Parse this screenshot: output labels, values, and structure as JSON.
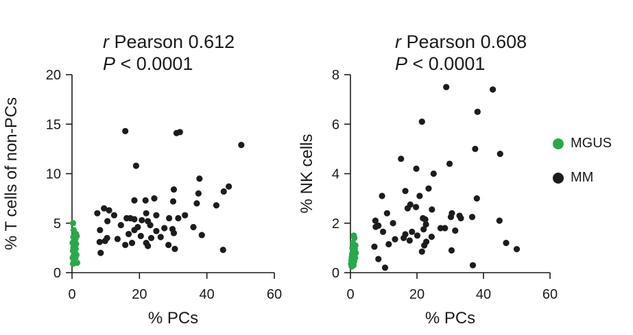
{
  "colors": {
    "MGUS": "#2aa84a",
    "MM": "#1c1c1c",
    "axis": "#1a1a1a"
  },
  "legend": {
    "placement": "right",
    "items": [
      {
        "label": "MGUS",
        "color": "#2aa84a"
      },
      {
        "label": "MM",
        "color": "#1c1c1c"
      }
    ]
  },
  "chart_data": [
    {
      "type": "scatter",
      "title_line1_italic": "r",
      "title_line1_rest": " Pearson 0.612",
      "title_line2_italic": "P",
      "title_line2_rest": " < 0.0001",
      "xlabel": "% PCs",
      "ylabel": "% T cells of non-PCs",
      "xlim": [
        0,
        60
      ],
      "ylim": [
        0,
        20
      ],
      "xticks": [
        0,
        20,
        40,
        60
      ],
      "yticks": [
        0,
        5,
        10,
        15,
        20
      ],
      "grid": false,
      "series": [
        {
          "name": "MGUS",
          "points": [
            [
              0.3,
              5.0
            ],
            [
              0.5,
              4.3
            ],
            [
              0.8,
              3.8
            ],
            [
              1.2,
              3.9
            ],
            [
              0.4,
              3.6
            ],
            [
              1.0,
              3.4
            ],
            [
              0.6,
              3.2
            ],
            [
              1.4,
              3.7
            ],
            [
              0.2,
              3.0
            ],
            [
              0.9,
              2.8
            ],
            [
              0.5,
              2.6
            ],
            [
              1.1,
              2.4
            ],
            [
              0.3,
              2.2
            ],
            [
              0.8,
              2.0
            ],
            [
              1.3,
              1.8
            ],
            [
              0.5,
              1.7
            ],
            [
              0.2,
              1.5
            ],
            [
              1.0,
              1.5
            ],
            [
              0.6,
              1.2
            ],
            [
              1.5,
              1.0
            ],
            [
              0.3,
              0.9
            ],
            [
              0.9,
              3.1
            ],
            [
              0.4,
              2.5
            ],
            [
              1.2,
              2.9
            ]
          ]
        },
        {
          "name": "MM",
          "points": [
            [
              15.8,
              14.3
            ],
            [
              31,
              14.1
            ],
            [
              32,
              14.2
            ],
            [
              50.2,
              12.9
            ],
            [
              19,
              10.8
            ],
            [
              37.8,
              9.5
            ],
            [
              46.5,
              8.7
            ],
            [
              30.2,
              8.4
            ],
            [
              45,
              8.2
            ],
            [
              37.5,
              8.0
            ],
            [
              24.4,
              7.5
            ],
            [
              18.5,
              7.3
            ],
            [
              21.8,
              7.3
            ],
            [
              30,
              7.2
            ],
            [
              37,
              7.0
            ],
            [
              42.8,
              6.8
            ],
            [
              9.5,
              6.5
            ],
            [
              11,
              6.3
            ],
            [
              7.5,
              6.0
            ],
            [
              22,
              6.0
            ],
            [
              25,
              5.8
            ],
            [
              33.5,
              5.8
            ],
            [
              12.5,
              5.8
            ],
            [
              31.5,
              5.5
            ],
            [
              28.8,
              5.5
            ],
            [
              17.3,
              5.5
            ],
            [
              18.5,
              5.4
            ],
            [
              16.2,
              5.5
            ],
            [
              20.7,
              5.3
            ],
            [
              22.5,
              5.2
            ],
            [
              10.5,
              5.2
            ],
            [
              23.2,
              4.8
            ],
            [
              14.5,
              4.8
            ],
            [
              19.5,
              4.6
            ],
            [
              36,
              4.6
            ],
            [
              27.4,
              4.5
            ],
            [
              29.8,
              4.4
            ],
            [
              8.3,
              4.3
            ],
            [
              18.5,
              4.3
            ],
            [
              25,
              4.2
            ],
            [
              30.2,
              4.0
            ],
            [
              16.8,
              3.9
            ],
            [
              38.5,
              3.8
            ],
            [
              20.4,
              3.7
            ],
            [
              26.3,
              3.6
            ],
            [
              23.5,
              3.5
            ],
            [
              10.4,
              3.5
            ],
            [
              13.5,
              3.4
            ],
            [
              9.8,
              3.2
            ],
            [
              8.2,
              3.1
            ],
            [
              17.8,
              3.0
            ],
            [
              22,
              3.0
            ],
            [
              28.6,
              2.8
            ],
            [
              15.8,
              2.8
            ],
            [
              22.5,
              2.7
            ],
            [
              30.5,
              2.4
            ],
            [
              44.8,
              2.3
            ],
            [
              8.5,
              2.0
            ]
          ]
        }
      ]
    },
    {
      "type": "scatter",
      "title_line1_italic": "r",
      "title_line1_rest": " Pearson 0.608",
      "title_line2_italic": "P",
      "title_line2_rest": " < 0.0001",
      "xlabel": "% PCs",
      "ylabel": "% NK cells",
      "xlim": [
        0,
        60
      ],
      "ylim": [
        0,
        8
      ],
      "xticks": [
        0,
        20,
        40,
        60
      ],
      "yticks": [
        0,
        2,
        4,
        6,
        8
      ],
      "grid": false,
      "series": [
        {
          "name": "MGUS",
          "points": [
            [
              1.0,
              1.5
            ],
            [
              1.2,
              1.4
            ],
            [
              1.5,
              1.1
            ],
            [
              0.6,
              1.0
            ],
            [
              1.3,
              0.95
            ],
            [
              0.8,
              0.85
            ],
            [
              1.6,
              0.8
            ],
            [
              0.5,
              0.75
            ],
            [
              1.0,
              0.7
            ],
            [
              0.4,
              0.62
            ],
            [
              1.4,
              0.6
            ],
            [
              0.7,
              0.55
            ],
            [
              0.3,
              0.5
            ],
            [
              1.1,
              0.45
            ],
            [
              0.6,
              0.4
            ],
            [
              0.2,
              0.35
            ],
            [
              0.9,
              0.3
            ],
            [
              0.4,
              0.25
            ],
            [
              1.2,
              0.9
            ],
            [
              0.7,
              1.2
            ]
          ]
        },
        {
          "name": "MM",
          "points": [
            [
              28.8,
              7.5
            ],
            [
              42.8,
              7.4
            ],
            [
              38.2,
              6.5
            ],
            [
              21.5,
              6.1
            ],
            [
              37.5,
              5.0
            ],
            [
              45,
              4.8
            ],
            [
              15.2,
              4.6
            ],
            [
              29.8,
              4.4
            ],
            [
              19.8,
              4.2
            ],
            [
              25,
              4.0
            ],
            [
              23.5,
              3.4
            ],
            [
              16.5,
              3.3
            ],
            [
              20.8,
              3.1
            ],
            [
              9.5,
              3.1
            ],
            [
              38,
              3.0
            ],
            [
              18,
              2.75
            ],
            [
              17.2,
              2.6
            ],
            [
              24.5,
              2.55
            ],
            [
              19.7,
              2.65
            ],
            [
              11,
              2.4
            ],
            [
              30.5,
              2.4
            ],
            [
              32.8,
              2.3
            ],
            [
              30.2,
              2.25
            ],
            [
              33.2,
              2.2
            ],
            [
              21.8,
              2.2
            ],
            [
              22.5,
              2.15
            ],
            [
              36.6,
              2.25
            ],
            [
              7.5,
              2.1
            ],
            [
              44.8,
              2.1
            ],
            [
              12.8,
              2.0
            ],
            [
              22.7,
              1.95
            ],
            [
              8.4,
              1.9
            ],
            [
              7.6,
              1.85
            ],
            [
              28.4,
              1.8
            ],
            [
              27.1,
              1.8
            ],
            [
              22,
              1.75
            ],
            [
              31.5,
              1.7
            ],
            [
              18.5,
              1.65
            ],
            [
              9.8,
              1.65
            ],
            [
              16.5,
              1.55
            ],
            [
              20.1,
              1.5
            ],
            [
              24.4,
              1.45
            ],
            [
              16,
              1.4
            ],
            [
              13.4,
              1.35
            ],
            [
              17.8,
              1.3
            ],
            [
              22.8,
              1.25
            ],
            [
              46.8,
              1.2
            ],
            [
              11.5,
              1.15
            ],
            [
              7.2,
              1.05
            ],
            [
              22.2,
              1.1
            ],
            [
              50,
              0.95
            ],
            [
              30.4,
              0.9
            ],
            [
              21.5,
              0.85
            ],
            [
              8.4,
              0.55
            ],
            [
              36.8,
              0.3
            ],
            [
              10.4,
              0.2
            ]
          ]
        }
      ]
    }
  ]
}
